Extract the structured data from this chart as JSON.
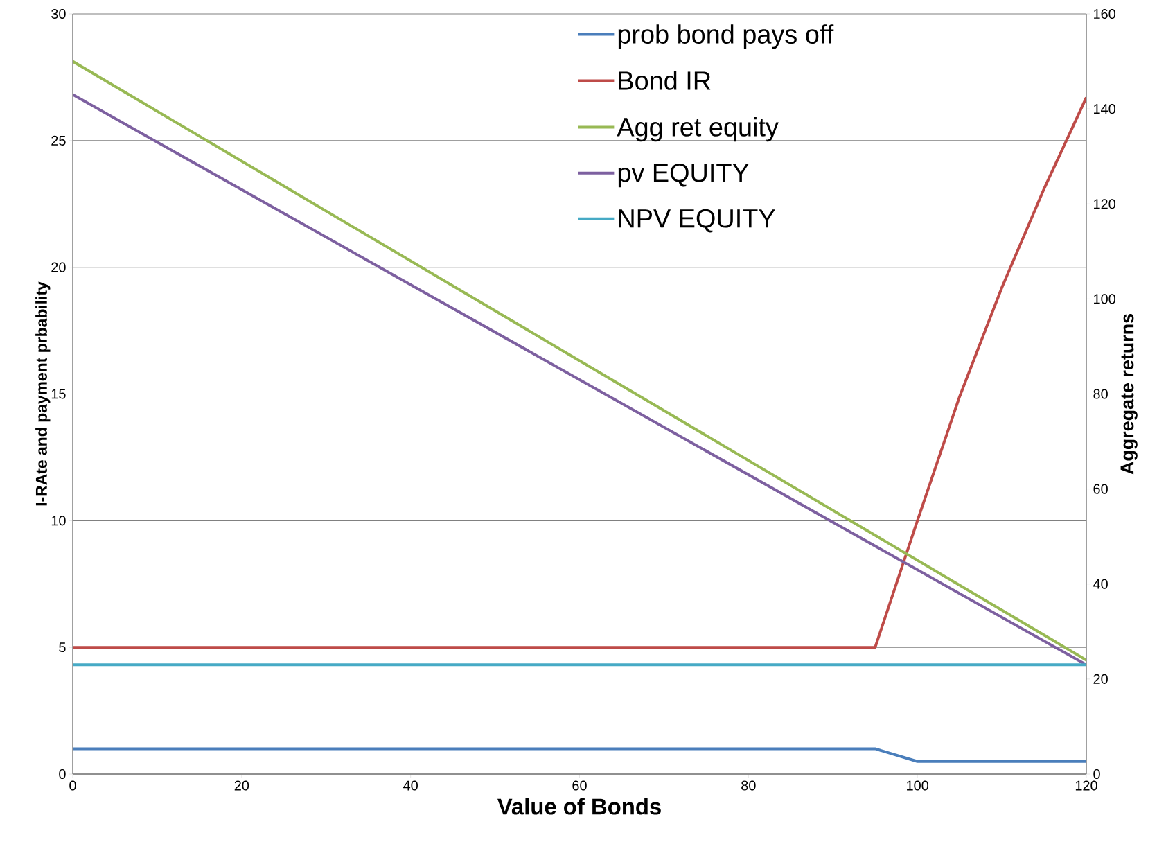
{
  "chart_data": {
    "type": "line",
    "xlabel": "Value of Bonds",
    "ylabel": "I-RAte and payment prbability",
    "y2label": "Aggregate returns",
    "xlim": [
      0,
      120
    ],
    "xticks": [
      0,
      20,
      40,
      60,
      80,
      100,
      120
    ],
    "ylim": [
      0,
      30
    ],
    "yticks": [
      0,
      5,
      10,
      15,
      20,
      25,
      30
    ],
    "y2lim": [
      0,
      160
    ],
    "y2ticks": [
      0,
      20,
      40,
      60,
      80,
      100,
      120,
      140,
      160
    ],
    "grid": "y",
    "legend": "top",
    "marker": "none",
    "line_style": "solid",
    "series": [
      {
        "name": "prob bond pays off",
        "color": "#4a7ebb",
        "x": [
          0,
          95,
          100,
          120
        ],
        "values": [
          1,
          1,
          0.5,
          0.5
        ]
      },
      {
        "name": "Bond IR",
        "color": "#be4b48",
        "x": [
          0,
          95,
          100,
          105,
          110,
          115,
          120
        ],
        "values": [
          5,
          5,
          10,
          14.9,
          19.2,
          23.1,
          26.7
        ]
      },
      {
        "name": "Agg ret equity",
        "color": "#98b954",
        "axis": "y2",
        "x": [
          0,
          120
        ],
        "values": [
          150,
          24
        ]
      },
      {
        "name": "pv EQUITY",
        "color": "#7d60a0",
        "axis": "y2",
        "x": [
          0,
          120
        ],
        "values": [
          143,
          23
        ]
      },
      {
        "name": "NPV EQUITY",
        "color": "#46aac5",
        "axis": "y2",
        "x": [
          0,
          120
        ],
        "values": [
          23,
          23
        ]
      }
    ]
  }
}
